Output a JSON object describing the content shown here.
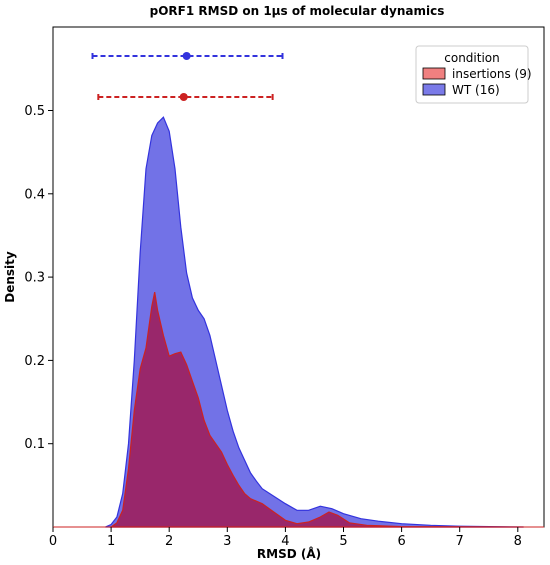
{
  "chart_data": {
    "type": "area",
    "title": "pORF1 RMSD on 1µs of molecular dynamics",
    "xlabel": "RMSD (Å)",
    "ylabel": "Density",
    "xlim": [
      0,
      8.15
    ],
    "ylim": [
      0,
      0.5
    ],
    "x_ticks": [
      "0",
      "1",
      "2",
      "3",
      "4",
      "5",
      "6",
      "7",
      "8"
    ],
    "y_ticks": [
      "0.1",
      "0.2",
      "0.3",
      "0.4",
      "0.5"
    ],
    "legend_title": "condition",
    "legend_position": "top-right",
    "grid": false,
    "series": [
      {
        "name": "WT (16)",
        "color": "#3333dd",
        "fill": "#4a4ae0",
        "mean": 2.3,
        "err_low": 0.68,
        "err_high": 3.95,
        "points": [
          [
            0.9,
            0
          ],
          [
            1.0,
            0.003
          ],
          [
            1.1,
            0.012
          ],
          [
            1.2,
            0.04
          ],
          [
            1.3,
            0.1
          ],
          [
            1.4,
            0.2
          ],
          [
            1.5,
            0.33
          ],
          [
            1.6,
            0.43
          ],
          [
            1.7,
            0.47
          ],
          [
            1.8,
            0.485
          ],
          [
            1.9,
            0.492
          ],
          [
            2.0,
            0.475
          ],
          [
            2.1,
            0.43
          ],
          [
            2.2,
            0.36
          ],
          [
            2.3,
            0.305
          ],
          [
            2.4,
            0.275
          ],
          [
            2.5,
            0.26
          ],
          [
            2.6,
            0.25
          ],
          [
            2.7,
            0.23
          ],
          [
            2.8,
            0.2
          ],
          [
            2.9,
            0.17
          ],
          [
            3.0,
            0.14
          ],
          [
            3.1,
            0.115
          ],
          [
            3.2,
            0.095
          ],
          [
            3.3,
            0.08
          ],
          [
            3.4,
            0.065
          ],
          [
            3.5,
            0.055
          ],
          [
            3.6,
            0.046
          ],
          [
            3.8,
            0.037
          ],
          [
            4.0,
            0.028
          ],
          [
            4.2,
            0.02
          ],
          [
            4.4,
            0.02
          ],
          [
            4.6,
            0.025
          ],
          [
            4.8,
            0.022
          ],
          [
            5.0,
            0.016
          ],
          [
            5.3,
            0.01
          ],
          [
            5.6,
            0.007
          ],
          [
            6.0,
            0.004
          ],
          [
            6.5,
            0.002
          ],
          [
            7.0,
            0.001
          ],
          [
            8.1,
            0
          ]
        ]
      },
      {
        "name": "insertions (9)",
        "color": "#cc2222",
        "fill": "#a01a55",
        "mean": 2.25,
        "err_low": 0.78,
        "err_high": 3.78,
        "points": [
          [
            1.0,
            0
          ],
          [
            1.1,
            0.005
          ],
          [
            1.2,
            0.02
          ],
          [
            1.3,
            0.07
          ],
          [
            1.4,
            0.14
          ],
          [
            1.5,
            0.19
          ],
          [
            1.6,
            0.215
          ],
          [
            1.7,
            0.265
          ],
          [
            1.75,
            0.282
          ],
          [
            1.8,
            0.26
          ],
          [
            1.9,
            0.23
          ],
          [
            2.0,
            0.205
          ],
          [
            2.1,
            0.208
          ],
          [
            2.2,
            0.21
          ],
          [
            2.3,
            0.195
          ],
          [
            2.4,
            0.175
          ],
          [
            2.5,
            0.155
          ],
          [
            2.6,
            0.128
          ],
          [
            2.7,
            0.11
          ],
          [
            2.8,
            0.1
          ],
          [
            2.9,
            0.09
          ],
          [
            3.0,
            0.075
          ],
          [
            3.1,
            0.062
          ],
          [
            3.2,
            0.05
          ],
          [
            3.3,
            0.04
          ],
          [
            3.4,
            0.034
          ],
          [
            3.5,
            0.031
          ],
          [
            3.6,
            0.028
          ],
          [
            3.8,
            0.018
          ],
          [
            4.0,
            0.008
          ],
          [
            4.2,
            0.004
          ],
          [
            4.4,
            0.006
          ],
          [
            4.6,
            0.012
          ],
          [
            4.75,
            0.018
          ],
          [
            4.9,
            0.014
          ],
          [
            5.1,
            0.005
          ],
          [
            5.4,
            0.002
          ],
          [
            6.0,
            0.0005
          ],
          [
            8.1,
            0
          ]
        ]
      }
    ]
  }
}
